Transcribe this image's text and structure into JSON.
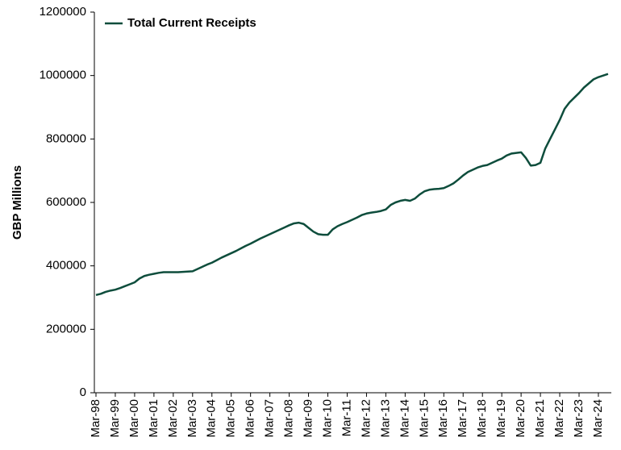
{
  "chart_data": {
    "type": "line",
    "y_label": "GBP Millions",
    "categories": [
      "Mar-98",
      null,
      null,
      null,
      "Mar-99",
      null,
      null,
      null,
      "Mar-00",
      null,
      null,
      null,
      "Mar-01",
      null,
      null,
      null,
      "Mar-02",
      null,
      null,
      null,
      "Mar-03",
      null,
      null,
      null,
      "Mar-04",
      null,
      null,
      null,
      "Mar-05",
      null,
      null,
      null,
      "Mar-06",
      null,
      null,
      null,
      "Mar-07",
      null,
      null,
      null,
      "Mar-08",
      null,
      null,
      null,
      "Mar-09",
      null,
      null,
      null,
      "Mar-10",
      null,
      null,
      null,
      "Mar-11",
      null,
      null,
      null,
      "Mar-12",
      null,
      null,
      null,
      "Mar-13",
      null,
      null,
      null,
      "Mar-14",
      null,
      null,
      null,
      "Mar-15",
      null,
      null,
      null,
      "Mar-16",
      null,
      null,
      null,
      "Mar-17",
      null,
      null,
      null,
      "Mar-18",
      null,
      null,
      null,
      "Mar-19",
      null,
      null,
      null,
      "Mar-20",
      null,
      null,
      null,
      "Mar-21",
      null,
      null,
      null,
      "Mar-22",
      null,
      null,
      null,
      "Mar-23",
      null,
      null,
      null,
      "Mar-24",
      null,
      null
    ],
    "series": [
      {
        "name": "Total Current Receipts",
        "color": "#0e4d3c",
        "values": [
          308000,
          312000,
          318000,
          322000,
          325000,
          330000,
          336000,
          342000,
          348000,
          360000,
          368000,
          372000,
          375000,
          378000,
          380000,
          380000,
          380000,
          380000,
          381000,
          382000,
          383000,
          390000,
          397000,
          404000,
          410000,
          418000,
          426000,
          433000,
          440000,
          447000,
          455000,
          463000,
          470000,
          478000,
          486000,
          493000,
          500000,
          507000,
          514000,
          521000,
          528000,
          534000,
          536000,
          532000,
          520000,
          508000,
          500000,
          498000,
          498000,
          515000,
          525000,
          532000,
          538000,
          545000,
          552000,
          560000,
          565000,
          568000,
          570000,
          573000,
          578000,
          592000,
          600000,
          605000,
          608000,
          605000,
          612000,
          625000,
          635000,
          640000,
          642000,
          643000,
          645000,
          652000,
          660000,
          672000,
          685000,
          696000,
          703000,
          710000,
          715000,
          718000,
          725000,
          732000,
          738000,
          748000,
          754000,
          756000,
          758000,
          740000,
          716000,
          718000,
          725000,
          770000,
          800000,
          830000,
          860000,
          895000,
          915000,
          930000,
          945000,
          962000,
          975000,
          988000,
          995000,
          1000000,
          1005000
        ]
      }
    ],
    "ylim": [
      0,
      1200000
    ],
    "yticks": [
      0,
      200000,
      400000,
      600000,
      800000,
      1000000,
      1200000
    ],
    "grid": false,
    "legend": "upper left"
  }
}
